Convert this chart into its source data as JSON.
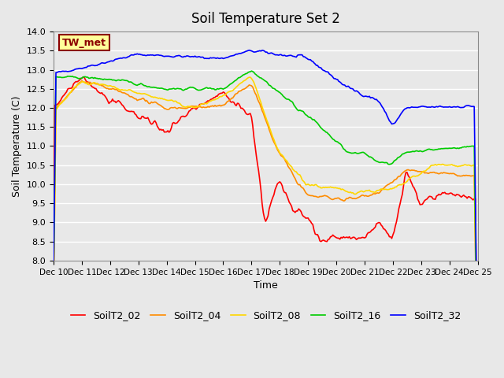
{
  "title": "Soil Temperature Set 2",
  "xlabel": "Time",
  "ylabel": "Soil Temperature (C)",
  "ylim": [
    8.0,
    14.0
  ],
  "yticks": [
    8.0,
    8.5,
    9.0,
    9.5,
    10.0,
    10.5,
    11.0,
    11.5,
    12.0,
    12.5,
    13.0,
    13.5,
    14.0
  ],
  "xlim": [
    0,
    360
  ],
  "x_tick_positions": [
    0,
    24,
    48,
    72,
    96,
    120,
    144,
    168,
    192,
    216,
    240,
    264,
    288,
    312,
    336,
    360
  ],
  "x_tick_labels": [
    "Dec 10",
    "Dec 11",
    "Dec 12",
    "Dec 13",
    "Dec 14",
    "Dec 15",
    "Dec 16",
    "Dec 17",
    "Dec 18",
    "Dec 19",
    "Dec 20",
    "Dec 21",
    "Dec 22",
    "Dec 23",
    "Dec 24",
    "Dec 25"
  ],
  "annotation_text": "TW_met",
  "annotation_color": "#8B0000",
  "annotation_bg": "#FFFF99",
  "background_color": "#E8E8E8",
  "plot_bg_color": "#E8E8E8",
  "grid_color": "#FFFFFF",
  "series": [
    {
      "name": "SoilT2_02",
      "color": "#FF0000",
      "linewidth": 1.2
    },
    {
      "name": "SoilT2_04",
      "color": "#FF8C00",
      "linewidth": 1.2
    },
    {
      "name": "SoilT2_08",
      "color": "#FFD700",
      "linewidth": 1.2
    },
    {
      "name": "SoilT2_16",
      "color": "#00CC00",
      "linewidth": 1.2
    },
    {
      "name": "SoilT2_32",
      "color": "#0000FF",
      "linewidth": 1.2
    }
  ]
}
